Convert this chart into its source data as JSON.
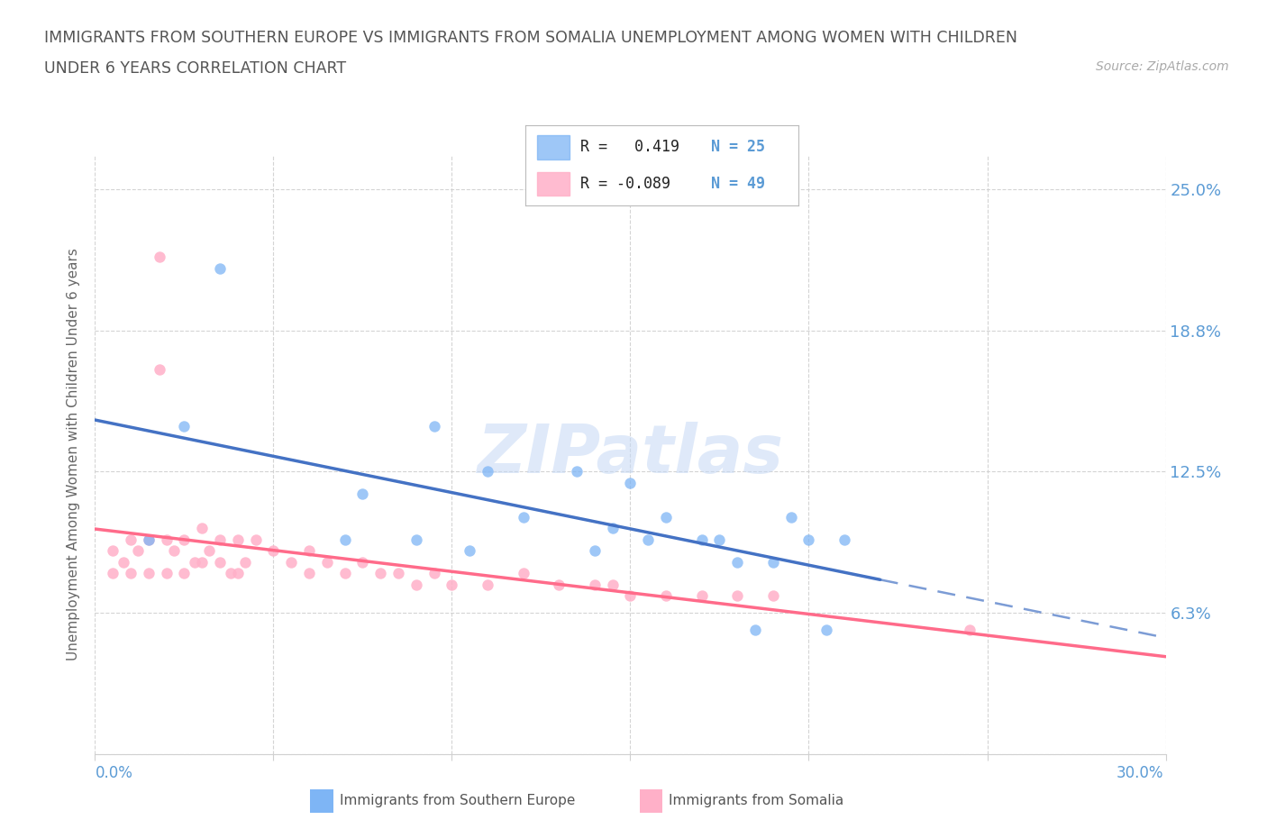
{
  "title_line1": "IMMIGRANTS FROM SOUTHERN EUROPE VS IMMIGRANTS FROM SOMALIA UNEMPLOYMENT AMONG WOMEN WITH CHILDREN",
  "title_line2": "UNDER 6 YEARS CORRELATION CHART",
  "source_text": "Source: ZipAtlas.com",
  "ylabel": "Unemployment Among Women with Children Under 6 years",
  "xlim": [
    0.0,
    30.0
  ],
  "ylim": [
    0.0,
    26.5
  ],
  "ytick_vals": [
    0.0,
    6.25,
    12.5,
    18.75,
    25.0
  ],
  "ytick_labels": [
    "",
    "6.3%",
    "12.5%",
    "18.8%",
    "25.0%"
  ],
  "watermark": "ZIPatlas",
  "color_blue": "#7EB5F5",
  "color_pink": "#FFB0C8",
  "color_blue_line": "#4472C4",
  "color_pink_line": "#FF6B8A",
  "label_blue": "Immigrants from Southern Europe",
  "label_pink": "Immigrants from Somalia",
  "bg_color": "#ffffff",
  "grid_color": "#d0d0d0",
  "tick_label_color": "#5B9BD5",
  "title_color": "#555555",
  "source_color": "#aaaaaa",
  "blue_x": [
    1.5,
    3.5,
    2.5,
    7.5,
    9.5,
    11.0,
    12.0,
    13.5,
    14.5,
    15.0,
    15.5,
    16.0,
    17.5,
    18.0,
    18.5,
    19.0,
    19.5,
    20.0,
    21.0,
    14.0,
    9.0,
    10.5,
    20.5,
    17.0,
    7.0
  ],
  "blue_y": [
    9.5,
    21.5,
    14.5,
    11.5,
    14.5,
    12.5,
    10.5,
    12.5,
    10.0,
    12.0,
    9.5,
    10.5,
    9.5,
    8.5,
    5.5,
    8.5,
    10.5,
    9.5,
    9.5,
    9.0,
    9.5,
    9.0,
    5.5,
    9.5,
    9.5
  ],
  "pink_x": [
    0.5,
    0.5,
    0.8,
    1.0,
    1.0,
    1.2,
    1.5,
    1.5,
    1.8,
    2.0,
    2.0,
    2.2,
    2.5,
    2.5,
    2.8,
    3.0,
    3.0,
    3.2,
    3.5,
    3.5,
    3.8,
    4.0,
    4.0,
    4.2,
    4.5,
    5.0,
    5.5,
    6.0,
    6.0,
    6.5,
    7.0,
    7.5,
    8.0,
    8.5,
    9.0,
    9.5,
    10.0,
    11.0,
    12.0,
    13.0,
    14.0,
    14.5,
    15.0,
    16.0,
    17.0,
    18.0,
    19.0,
    24.5,
    1.8
  ],
  "pink_y": [
    9.0,
    8.0,
    8.5,
    9.5,
    8.0,
    9.0,
    9.5,
    8.0,
    22.0,
    9.5,
    8.0,
    9.0,
    9.5,
    8.0,
    8.5,
    10.0,
    8.5,
    9.0,
    9.5,
    8.5,
    8.0,
    9.5,
    8.0,
    8.5,
    9.5,
    9.0,
    8.5,
    9.0,
    8.0,
    8.5,
    8.0,
    8.5,
    8.0,
    8.0,
    7.5,
    8.0,
    7.5,
    7.5,
    8.0,
    7.5,
    7.5,
    7.5,
    7.0,
    7.0,
    7.0,
    7.0,
    7.0,
    5.5,
    17.0
  ]
}
